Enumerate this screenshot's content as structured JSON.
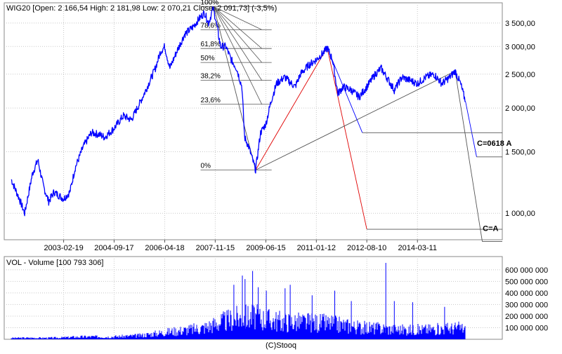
{
  "header": {
    "label": "WIG20 [Open: 2 166,54  High: 2 181,98  Low: 2 070,21  Close: 2 091,73]  (-3,5%)"
  },
  "volume_header": {
    "label": "VOL - Volume [100 793 306]"
  },
  "footer": {
    "copyright": "(C)Stooq"
  },
  "colors": {
    "price": "#0000ff",
    "volume": "#0000ff",
    "projection_red": "#e00000",
    "fib": "#555555",
    "grid": "#c8c8c8"
  },
  "chart_data": [
    {
      "type": "line",
      "scale": "log",
      "title": "WIG20",
      "ohlc": {
        "open": 2166.54,
        "high": 2181.98,
        "low": 2070.21,
        "close": 2091.73,
        "change_pct": -3.5
      },
      "x_ticks": [
        "2003-02-19",
        "2004-09-17",
        "2006-04-18",
        "2007-11-15",
        "2009-06-15",
        "2011-01-12",
        "2012-08-10",
        "2014-03-11"
      ],
      "y_ticks": [
        1000,
        1500,
        2000,
        2500,
        3000,
        3500
      ],
      "y_tick_labels": [
        "1 000,00",
        "1 500,00",
        "2 000,00",
        "2 500,00",
        "3 000,00",
        "3 500,00"
      ],
      "ylim": [
        840,
        4000
      ],
      "series": [
        {
          "values": [
            [
              "2001-07-01",
              1250
            ],
            [
              "2001-10-01",
              1100
            ],
            [
              "2001-12-01",
              1000
            ],
            [
              "2002-03-01",
              1300
            ],
            [
              "2002-05-01",
              1420
            ],
            [
              "2002-07-01",
              1200
            ],
            [
              "2002-09-01",
              1080
            ],
            [
              "2002-11-01",
              1150
            ],
            [
              "2003-02-19",
              1100
            ],
            [
              "2003-05-01",
              1150
            ],
            [
              "2003-07-01",
              1350
            ],
            [
              "2003-10-01",
              1550
            ],
            [
              "2004-01-01",
              1700
            ],
            [
              "2004-04-01",
              1680
            ],
            [
              "2004-06-01",
              1650
            ],
            [
              "2004-09-17",
              1750
            ],
            [
              "2005-01-01",
              1900
            ],
            [
              "2005-04-01",
              1850
            ],
            [
              "2005-07-01",
              2050
            ],
            [
              "2005-10-01",
              2300
            ],
            [
              "2006-01-01",
              2600
            ],
            [
              "2006-03-01",
              2900
            ],
            [
              "2006-04-18",
              3000
            ],
            [
              "2006-06-15",
              2600
            ],
            [
              "2006-09-01",
              2900
            ],
            [
              "2006-12-01",
              3250
            ],
            [
              "2007-03-01",
              3400
            ],
            [
              "2007-05-15",
              3600
            ],
            [
              "2007-07-15",
              3750
            ],
            [
              "2007-09-01",
              3500
            ],
            [
              "2007-10-20",
              3850
            ],
            [
              "2007-11-15",
              3650
            ],
            [
              "2008-01-15",
              3000
            ],
            [
              "2008-03-15",
              3000
            ],
            [
              "2008-05-15",
              2750
            ],
            [
              "2008-07-15",
              2600
            ],
            [
              "2008-09-15",
              2300
            ],
            [
              "2008-10-15",
              1650
            ],
            [
              "2008-12-01",
              1550
            ],
            [
              "2009-02-18",
              1330
            ],
            [
              "2009-04-15",
              1700
            ],
            [
              "2009-06-15",
              1800
            ],
            [
              "2009-08-15",
              2100
            ],
            [
              "2009-10-15",
              2350
            ],
            [
              "2010-01-15",
              2450
            ],
            [
              "2010-05-15",
              2300
            ],
            [
              "2010-07-15",
              2500
            ],
            [
              "2010-10-15",
              2650
            ],
            [
              "2011-01-12",
              2750
            ],
            [
              "2011-04-15",
              2900
            ],
            [
              "2011-05-15",
              2980
            ],
            [
              "2011-07-15",
              2750
            ],
            [
              "2011-09-15",
              2200
            ],
            [
              "2011-11-15",
              2300
            ],
            [
              "2012-02-15",
              2250
            ],
            [
              "2012-05-15",
              2150
            ],
            [
              "2012-08-10",
              2300
            ],
            [
              "2012-11-15",
              2500
            ],
            [
              "2013-01-20",
              2600
            ],
            [
              "2013-04-15",
              2400
            ],
            [
              "2013-06-20",
              2250
            ],
            [
              "2013-09-15",
              2450
            ],
            [
              "2013-12-15",
              2400
            ],
            [
              "2014-03-11",
              2350
            ],
            [
              "2014-06-15",
              2450
            ],
            [
              "2014-09-15",
              2500
            ],
            [
              "2014-12-15",
              2350
            ],
            [
              "2015-03-15",
              2450
            ],
            [
              "2015-05-15",
              2550
            ],
            [
              "2015-07-15",
              2350
            ],
            [
              "2015-08-20",
              2180
            ],
            [
              "2015-09-10",
              2091.73
            ]
          ]
        }
      ],
      "projections": [
        {
          "color": "red",
          "points": [
            [
              "2009-02-18",
              1330
            ],
            [
              "2011-05-15",
              2980
            ]
          ]
        },
        {
          "color": "red",
          "points": [
            [
              "2011-05-15",
              2980
            ],
            [
              "2012-08-10",
              900
            ]
          ]
        },
        {
          "color": "gray",
          "points": [
            [
              "2009-02-18",
              1330
            ],
            [
              "2015-05-15",
              2550
            ]
          ]
        },
        {
          "color": "gray",
          "points": [
            [
              "2007-10-29",
              3900
            ],
            [
              "2009-02-18",
              1330
            ]
          ]
        },
        {
          "color": "gray",
          "points": [
            [
              "2015-05-15",
              2550
            ],
            [
              "2016-03-20",
              830
            ]
          ]
        },
        {
          "color": "blue",
          "points": [
            [
              "2011-05-15",
              2980
            ],
            [
              "2012-06-20",
              1700
            ]
          ]
        },
        {
          "color": "blue",
          "points": [
            [
              "2015-09-10",
              2091.73
            ],
            [
              "2016-01-15",
              1450
            ]
          ]
        }
      ],
      "target_levels": [
        {
          "value": 1700,
          "from": "2012-06-20"
        },
        {
          "value": 1450,
          "from": "2016-01-15"
        },
        {
          "value": 900,
          "from": "2012-08-10"
        },
        {
          "value": 830,
          "from": "2016-03-20"
        }
      ],
      "fibonacci": {
        "high": 3900,
        "low": 1330,
        "levels": [
          {
            "label": "100%",
            "value": 3900
          },
          {
            "label": "78,6%",
            "value": 3350
          },
          {
            "label": "61,8%",
            "value": 2960
          },
          {
            "label": "50%",
            "value": 2700
          },
          {
            "label": "38,2%",
            "value": 2400
          },
          {
            "label": "23,6%",
            "value": 2050
          },
          {
            "label": "0%",
            "value": 1330
          }
        ]
      },
      "annotations": [
        {
          "text": "C=0618 A",
          "date": "2016-01-20",
          "value": 1560
        },
        {
          "text": "C=A",
          "date": "2016-03-25",
          "value": 890
        }
      ]
    },
    {
      "type": "bar",
      "title": "VOL - Volume",
      "last_value": 100793306,
      "y_ticks": [
        100000000,
        200000000,
        300000000,
        400000000,
        500000000,
        600000000
      ],
      "y_tick_labels": [
        "100 000 000",
        "200 000 000",
        "300 000 000",
        "400 000 000",
        "500 000 000",
        "600 000 000"
      ],
      "ylim": [
        0,
        690000000
      ],
      "series": [
        {
          "values": [
            [
              "2001-07-01",
              12000000
            ],
            [
              "2002-01-01",
              14000000
            ],
            [
              "2002-07-01",
              13000000
            ],
            [
              "2003-01-01",
              15000000
            ],
            [
              "2003-07-01",
              22000000
            ],
            [
              "2004-01-01",
              25000000
            ],
            [
              "2004-07-01",
              23000000
            ],
            [
              "2005-01-01",
              28000000
            ],
            [
              "2005-07-01",
              35000000
            ],
            [
              "2006-01-01",
              55000000
            ],
            [
              "2006-07-01",
              75000000
            ],
            [
              "2007-01-01",
              90000000
            ],
            [
              "2007-07-01",
              110000000
            ],
            [
              "2008-01-01",
              160000000
            ],
            [
              "2008-07-01",
              200000000
            ],
            [
              "2009-01-01",
              220000000
            ],
            [
              "2009-07-01",
              190000000
            ],
            [
              "2010-01-01",
              170000000
            ],
            [
              "2010-07-01",
              165000000
            ],
            [
              "2011-01-01",
              160000000
            ],
            [
              "2011-07-01",
              150000000
            ],
            [
              "2012-01-01",
              130000000
            ],
            [
              "2012-07-01",
              110000000
            ],
            [
              "2013-01-01",
              105000000
            ],
            [
              "2013-07-01",
              95000000
            ],
            [
              "2014-01-01",
              90000000
            ],
            [
              "2014-07-01",
              95000000
            ],
            [
              "2015-01-01",
              100000000
            ],
            [
              "2015-07-01",
              110000000
            ],
            [
              "2015-09-10",
              100793306
            ]
          ]
        }
      ],
      "spikes": [
        [
          "2008-06-15",
          470000000
        ],
        [
          "2008-09-20",
          550000000
        ],
        [
          "2008-10-20",
          520000000
        ],
        [
          "2009-01-15",
          590000000
        ],
        [
          "2009-03-20",
          450000000
        ],
        [
          "2009-06-20",
          420000000
        ],
        [
          "2010-01-20",
          440000000
        ],
        [
          "2010-03-20",
          470000000
        ],
        [
          "2010-11-25",
          380000000
        ],
        [
          "2011-08-10",
          420000000
        ],
        [
          "2012-02-15",
          330000000
        ],
        [
          "2013-03-15",
          660000000
        ],
        [
          "2013-06-20",
          330000000
        ],
        [
          "2014-01-15",
          320000000
        ],
        [
          "2015-01-15",
          280000000
        ]
      ]
    }
  ]
}
